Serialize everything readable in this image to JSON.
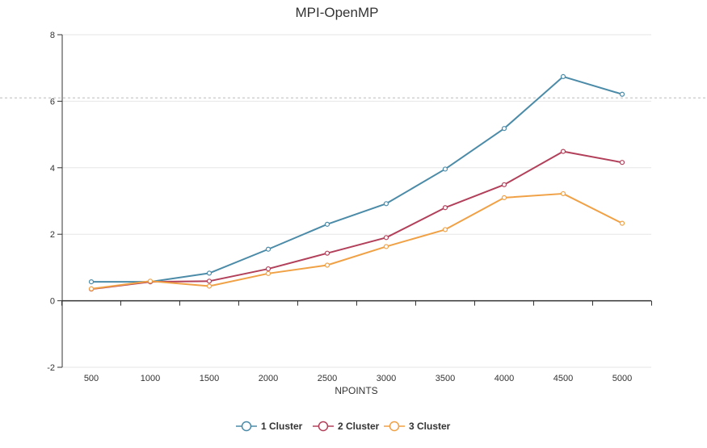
{
  "chart_data": {
    "type": "line",
    "title": "MPI-OpenMP",
    "xlabel": "NPOINTS",
    "ylabel": "",
    "categories": [
      "500",
      "1000",
      "1500",
      "2000",
      "2500",
      "3000",
      "3500",
      "4000",
      "4500",
      "5000"
    ],
    "yticks": [
      "-2",
      "0",
      "2",
      "4",
      "6",
      "8"
    ],
    "ylim": [
      -2,
      8
    ],
    "grid": true,
    "legend_position": "bottom-center",
    "reference_line": 6.1,
    "series": [
      {
        "name": "1 Cluster",
        "color": "#4b8ba8",
        "values": [
          0.57,
          0.57,
          0.83,
          1.55,
          2.3,
          2.92,
          3.96,
          5.18,
          6.74,
          6.21
        ]
      },
      {
        "name": "2 Cluster",
        "color": "#b2405a",
        "values": [
          0.35,
          0.57,
          0.59,
          0.96,
          1.43,
          1.9,
          2.8,
          3.49,
          4.49,
          4.16
        ]
      },
      {
        "name": "3 Cluster",
        "color": "#f0a145",
        "values": [
          0.36,
          0.59,
          0.44,
          0.82,
          1.07,
          1.63,
          2.14,
          3.1,
          3.22,
          2.33
        ]
      }
    ]
  }
}
